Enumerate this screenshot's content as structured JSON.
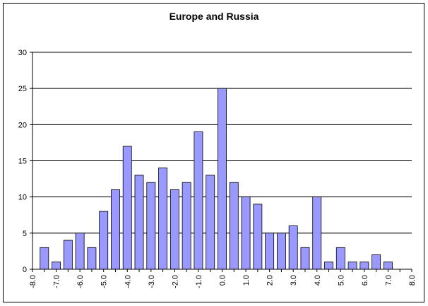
{
  "chart_data": {
    "type": "bar",
    "title": "Europe and Russia",
    "xlabel": "",
    "ylabel": "",
    "ylim": [
      0,
      30
    ],
    "yticks": [
      0,
      5,
      10,
      15,
      20,
      25,
      30
    ],
    "x_range": [
      -8.0,
      8.0
    ],
    "x_tick_labels": [
      "-8.0",
      "-7.0",
      "-6.0",
      "-5.0",
      "-4.0",
      "-3.0",
      "-2.0",
      "-1.0",
      "0.0",
      "1.0",
      "2.0",
      "3.0",
      "4.0",
      "5.0",
      "6.0",
      "7.0",
      "8.0"
    ],
    "bin_width": 0.5,
    "x": [
      -7.5,
      -7.0,
      -6.5,
      -6.0,
      -5.5,
      -5.0,
      -4.5,
      -4.0,
      -3.5,
      -3.0,
      -2.5,
      -2.0,
      -1.5,
      -1.0,
      -0.5,
      0.0,
      0.5,
      1.0,
      1.5,
      2.0,
      2.5,
      3.0,
      3.5,
      4.0,
      4.5,
      5.0,
      5.5,
      6.0,
      6.5,
      7.0
    ],
    "values": [
      3,
      1,
      4,
      5,
      3,
      8,
      11,
      17,
      13,
      12,
      14,
      11,
      12,
      19,
      13,
      25,
      12,
      10,
      9,
      5,
      5,
      6,
      3,
      10,
      1,
      3,
      1,
      1,
      2,
      1
    ],
    "grid": true,
    "legend": "none",
    "bar_color": "#9999ff",
    "bar_edge_color": "#000000"
  }
}
